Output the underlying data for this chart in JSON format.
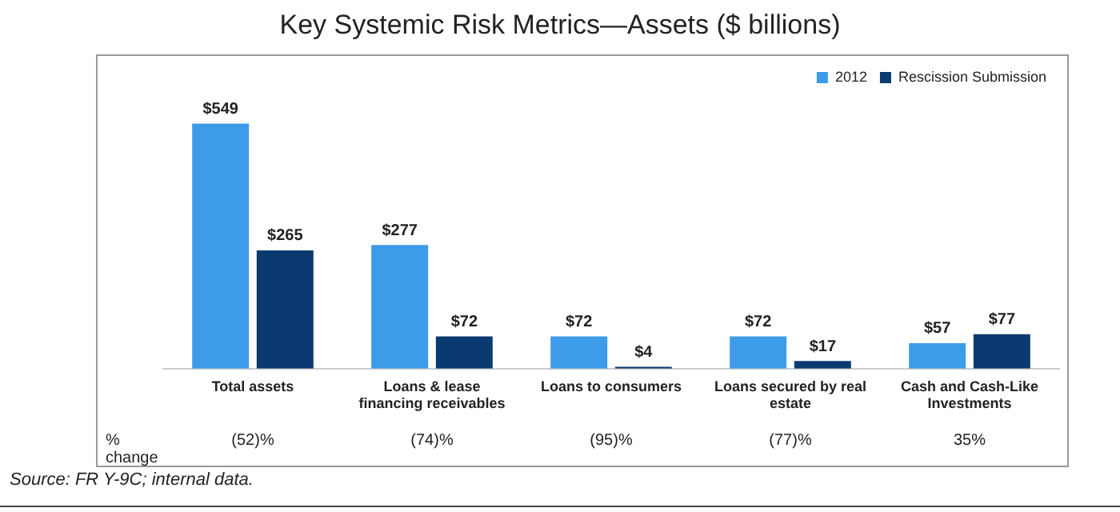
{
  "chart_data": {
    "type": "bar",
    "title": "Key Systemic Risk Metrics—Assets ($ billions)",
    "categories": [
      "Total assets",
      "Loans & lease financing receivables",
      "Loans to consumers",
      "Loans secured by real estate",
      "Cash and Cash-Like Investments"
    ],
    "series": [
      {
        "name": "2012",
        "color": "#3d9be9",
        "values": [
          549,
          277,
          72,
          72,
          57
        ],
        "value_labels": [
          "$549",
          "$277",
          "$72",
          "$72",
          "$57"
        ]
      },
      {
        "name": "Rescission Submission",
        "color": "#0b3a70",
        "values": [
          265,
          72,
          4,
          17,
          77
        ],
        "value_labels": [
          "$265",
          "$72",
          "$4",
          "$17",
          "$77"
        ]
      }
    ],
    "annotations": [
      "% change",
      "(52)%",
      "(74)%",
      "(95)%",
      "(77)%",
      "35%",
      "Source: FR Y-9C; internal data."
    ],
    "grid": false,
    "legend": "top right",
    "tick_labels": "x"
  }
}
